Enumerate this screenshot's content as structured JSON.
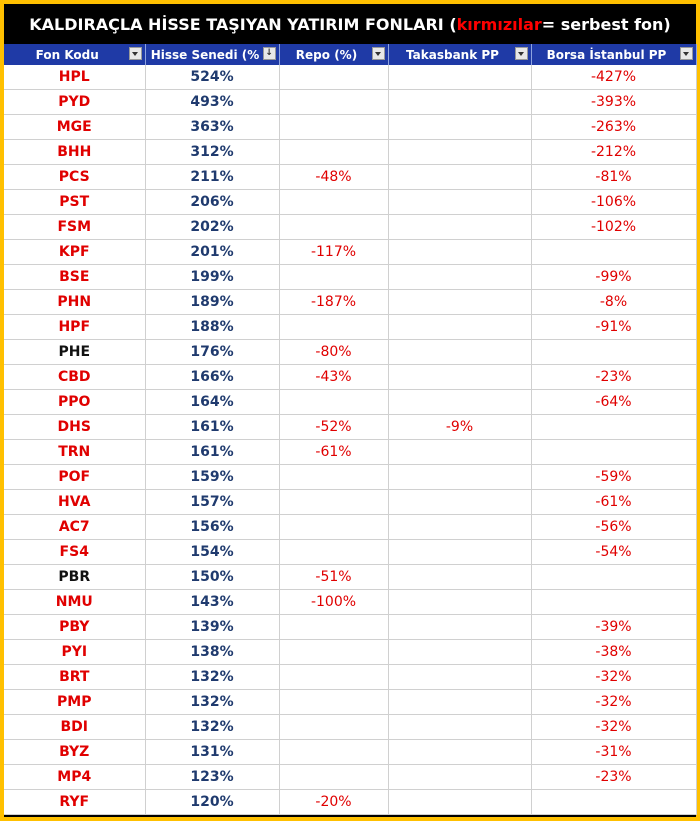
{
  "title": {
    "prefix": "KALDIRAÇLA HİSSE TAŞIYAN YATIRIM FONLARI (",
    "highlight": "kırmızılar",
    "suffix": " = serbest fon)"
  },
  "columns": [
    "Fon Kodu",
    "Hisse Senedi (%",
    "Repo (%)",
    "Takasbank PP",
    "Borsa İstanbul PP"
  ],
  "colors": {
    "header": "#1f3aa6",
    "serbest": "#e00000",
    "normal": "#111111",
    "hisse": "#1f3a6e",
    "frame": "#ffc000"
  },
  "rows": [
    {
      "code": "HPL",
      "serbest": true,
      "hisse": "524%",
      "repo": "",
      "takas": "",
      "borsa": "-427%"
    },
    {
      "code": "PYD",
      "serbest": true,
      "hisse": "493%",
      "repo": "",
      "takas": "",
      "borsa": "-393%"
    },
    {
      "code": "MGE",
      "serbest": true,
      "hisse": "363%",
      "repo": "",
      "takas": "",
      "borsa": "-263%"
    },
    {
      "code": "BHH",
      "serbest": true,
      "hisse": "312%",
      "repo": "",
      "takas": "",
      "borsa": "-212%"
    },
    {
      "code": "PCS",
      "serbest": true,
      "hisse": "211%",
      "repo": "-48%",
      "takas": "",
      "borsa": "-81%"
    },
    {
      "code": "PST",
      "serbest": true,
      "hisse": "206%",
      "repo": "",
      "takas": "",
      "borsa": "-106%"
    },
    {
      "code": "FSM",
      "serbest": true,
      "hisse": "202%",
      "repo": "",
      "takas": "",
      "borsa": "-102%"
    },
    {
      "code": "KPF",
      "serbest": true,
      "hisse": "201%",
      "repo": "-117%",
      "takas": "",
      "borsa": ""
    },
    {
      "code": "BSE",
      "serbest": true,
      "hisse": "199%",
      "repo": "",
      "takas": "",
      "borsa": "-99%"
    },
    {
      "code": "PHN",
      "serbest": true,
      "hisse": "189%",
      "repo": "-187%",
      "takas": "",
      "borsa": "-8%"
    },
    {
      "code": "HPF",
      "serbest": true,
      "hisse": "188%",
      "repo": "",
      "takas": "",
      "borsa": "-91%"
    },
    {
      "code": "PHE",
      "serbest": false,
      "hisse": "176%",
      "repo": "-80%",
      "takas": "",
      "borsa": ""
    },
    {
      "code": "CBD",
      "serbest": true,
      "hisse": "166%",
      "repo": "-43%",
      "takas": "",
      "borsa": "-23%"
    },
    {
      "code": "PPO",
      "serbest": true,
      "hisse": "164%",
      "repo": "",
      "takas": "",
      "borsa": "-64%"
    },
    {
      "code": "DHS",
      "serbest": true,
      "hisse": "161%",
      "repo": "-52%",
      "takas": "-9%",
      "borsa": ""
    },
    {
      "code": "TRN",
      "serbest": true,
      "hisse": "161%",
      "repo": "-61%",
      "takas": "",
      "borsa": ""
    },
    {
      "code": "POF",
      "serbest": true,
      "hisse": "159%",
      "repo": "",
      "takas": "",
      "borsa": "-59%"
    },
    {
      "code": "HVA",
      "serbest": true,
      "hisse": "157%",
      "repo": "",
      "takas": "",
      "borsa": "-61%"
    },
    {
      "code": "AC7",
      "serbest": true,
      "hisse": "156%",
      "repo": "",
      "takas": "",
      "borsa": "-56%"
    },
    {
      "code": "FS4",
      "serbest": true,
      "hisse": "154%",
      "repo": "",
      "takas": "",
      "borsa": "-54%"
    },
    {
      "code": "PBR",
      "serbest": false,
      "hisse": "150%",
      "repo": "-51%",
      "takas": "",
      "borsa": ""
    },
    {
      "code": "NMU",
      "serbest": true,
      "hisse": "143%",
      "repo": "-100%",
      "takas": "",
      "borsa": ""
    },
    {
      "code": "PBY",
      "serbest": true,
      "hisse": "139%",
      "repo": "",
      "takas": "",
      "borsa": "-39%"
    },
    {
      "code": "PYI",
      "serbest": true,
      "hisse": "138%",
      "repo": "",
      "takas": "",
      "borsa": "-38%"
    },
    {
      "code": "BRT",
      "serbest": true,
      "hisse": "132%",
      "repo": "",
      "takas": "",
      "borsa": "-32%"
    },
    {
      "code": "PMP",
      "serbest": true,
      "hisse": "132%",
      "repo": "",
      "takas": "",
      "borsa": "-32%"
    },
    {
      "code": "BDI",
      "serbest": true,
      "hisse": "132%",
      "repo": "",
      "takas": "",
      "borsa": "-32%"
    },
    {
      "code": "BYZ",
      "serbest": true,
      "hisse": "131%",
      "repo": "",
      "takas": "",
      "borsa": "-31%"
    },
    {
      "code": "MP4",
      "serbest": true,
      "hisse": "123%",
      "repo": "",
      "takas": "",
      "borsa": "-23%"
    },
    {
      "code": "RYF",
      "serbest": true,
      "hisse": "120%",
      "repo": "-20%",
      "takas": "",
      "borsa": ""
    }
  ]
}
